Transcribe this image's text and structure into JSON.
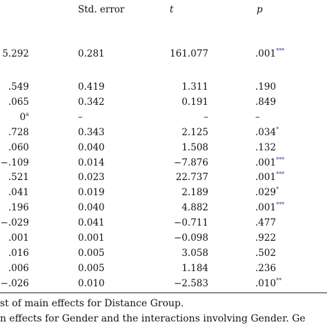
{
  "table": {
    "header": [
      "Std. error",
      "t",
      "p"
    ],
    "rows": [
      {
        "cells": [
          "5.292",
          "0.281",
          "161.077",
          ".001"
        ],
        "sup": "***"
      },
      {
        "cells": [
          ".549",
          "0.419",
          "1.311",
          ".190"
        ]
      },
      {
        "cells": [
          ".065",
          "0.342",
          "0.191",
          ".849"
        ]
      },
      {
        "cells": [
          "0",
          "–",
          "–",
          "–"
        ],
        "estimate_sup": "a"
      },
      {
        "cells": [
          ".728",
          "0.343",
          "2.125",
          ".034"
        ],
        "sup": "*"
      },
      {
        "cells": [
          ".060",
          "0.040",
          "1.508",
          ".132"
        ]
      },
      {
        "cells": [
          "−.109",
          "0.014",
          "−7.876",
          ".001"
        ],
        "sup": "***"
      },
      {
        "cells": [
          ".521",
          "0.023",
          "22.737",
          ".001"
        ],
        "sup": "***"
      },
      {
        "cells": [
          ".041",
          "0.019",
          "2.189",
          ".029"
        ],
        "sup": "*"
      },
      {
        "cells": [
          ".196",
          "0.040",
          "4.882",
          ".001"
        ],
        "sup": "***"
      },
      {
        "cells": [
          "−.029",
          "0.041",
          "−0.711",
          ".477"
        ]
      },
      {
        "cells": [
          ".001",
          "0.001",
          "−0.098",
          ".922"
        ]
      },
      {
        "cells": [
          ".016",
          "0.005",
          "3.058",
          ".502"
        ]
      },
      {
        "cells": [
          ".006",
          "0.005",
          "1.184",
          ".236"
        ]
      },
      {
        "cells": [
          "−.026",
          "0.010",
          "−2.583",
          ".010"
        ],
        "sup": "**"
      }
    ],
    "footnotes": [
      "st of main effects for Distance Group.",
      "n effects for Gender and the interactions involving Gender. Ge"
    ]
  }
}
